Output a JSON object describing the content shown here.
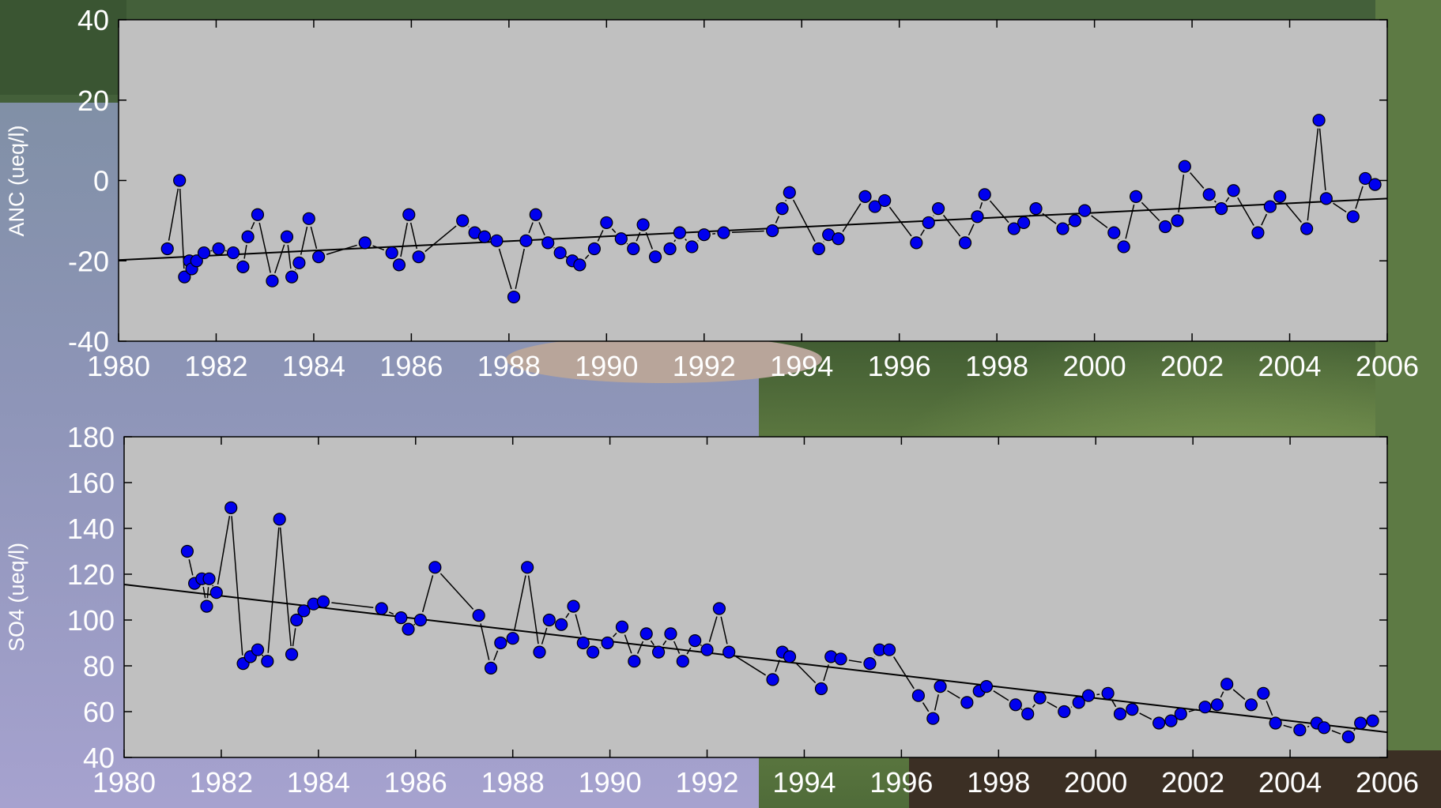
{
  "colors": {
    "plot_bg": "#c0c0c0",
    "marker": "#0000ee",
    "line": "#000000",
    "text": "#ffffff"
  },
  "chart_data": [
    {
      "type": "scatter",
      "ylabel": "ANC (ueq/l)",
      "xlim": [
        1980,
        2006
      ],
      "ylim": [
        -40,
        40
      ],
      "xticks": [
        "1980",
        "1982",
        "1984",
        "1986",
        "1988",
        "1990",
        "1992",
        "1994",
        "1996",
        "1998",
        "2000",
        "2002",
        "2004",
        "2006"
      ],
      "yticks": [
        "-40",
        "-20",
        "0",
        "20",
        "40"
      ],
      "grid": false,
      "series": [
        {
          "x": [
            1981.0,
            1981.25,
            1981.35,
            1981.45,
            1981.5,
            1981.6,
            1981.75,
            1982.05,
            1982.35,
            1982.55,
            1982.65,
            1982.85,
            1983.15,
            1983.45,
            1983.55,
            1983.7,
            1983.9,
            1984.1,
            1985.05,
            1985.6,
            1985.75,
            1985.95,
            1986.15,
            1987.05,
            1987.3,
            1987.5,
            1987.75,
            1988.1,
            1988.35,
            1988.55,
            1988.8,
            1989.05,
            1989.3,
            1989.45,
            1989.75,
            1990.0,
            1990.3,
            1990.55,
            1990.75,
            1991.0,
            1991.3,
            1991.5,
            1991.75,
            1992.0,
            1992.4,
            1993.4,
            1993.6,
            1993.75,
            1994.35,
            1994.55,
            1994.75,
            1995.3,
            1995.5,
            1995.7,
            1996.35,
            1996.6,
            1996.8,
            1997.35,
            1997.6,
            1997.75,
            1998.35,
            1998.55,
            1998.8,
            1999.35,
            1999.6,
            1999.8,
            2000.4,
            2000.6,
            2000.85,
            2001.45,
            2001.7,
            2001.85,
            2002.35,
            2002.6,
            2002.85,
            2003.35,
            2003.6,
            2003.8,
            2004.35,
            2004.6,
            2004.75,
            2005.3,
            2005.55,
            2005.75
          ],
          "y": [
            -17,
            0,
            -24,
            -20,
            -22,
            -20,
            -18,
            -17,
            -18,
            -21.5,
            -14,
            -8.5,
            -25,
            -14,
            -24,
            -20.5,
            -9.5,
            -19,
            -15.5,
            -18,
            -21,
            -8.5,
            -19,
            -10,
            -13,
            -14,
            -15,
            -29,
            -15,
            -8.5,
            -15.5,
            -18,
            -20,
            -21,
            -17,
            -10.5,
            -14.5,
            -17,
            -11,
            -19,
            -17,
            -13,
            -16.5,
            -13.5,
            -13,
            -12.5,
            -7,
            -3,
            -17,
            -13.5,
            -14.5,
            -4,
            -6.5,
            -5,
            -15.5,
            -10.5,
            -7,
            -15.5,
            -9,
            -3.5,
            -12,
            -10.5,
            -7,
            -12,
            -10,
            -7.5,
            -13,
            -16.5,
            -4,
            -11.5,
            -10,
            3.5,
            -3.5,
            -7,
            -2.5,
            -13,
            -6.5,
            -4,
            -12,
            15,
            -4.5,
            -9,
            0.5,
            -1
          ],
          "trend": {
            "x": [
              1980,
              2006
            ],
            "y": [
              -19.8,
              -4.5
            ]
          }
        }
      ]
    },
    {
      "type": "scatter",
      "ylabel": "SO4 (ueq/l)",
      "xlim": [
        1980,
        2006
      ],
      "ylim": [
        40,
        180
      ],
      "xticks": [
        "1980",
        "1982",
        "1984",
        "1986",
        "1988",
        "1990",
        "1992",
        "1994",
        "1996",
        "1998",
        "2000",
        "2002",
        "2004",
        "2006"
      ],
      "yticks": [
        "40",
        "60",
        "80",
        "100",
        "120",
        "140",
        "160",
        "180"
      ],
      "grid": false,
      "series": [
        {
          "x": [
            1981.3,
            1981.45,
            1981.6,
            1981.7,
            1981.75,
            1981.9,
            1982.2,
            1982.45,
            1982.6,
            1982.75,
            1982.95,
            1983.2,
            1983.45,
            1983.55,
            1983.7,
            1983.9,
            1984.1,
            1985.3,
            1985.7,
            1985.85,
            1986.1,
            1986.4,
            1987.3,
            1987.55,
            1987.75,
            1988.0,
            1988.3,
            1988.55,
            1988.75,
            1989.0,
            1989.25,
            1989.45,
            1989.65,
            1989.95,
            1990.25,
            1990.5,
            1990.75,
            1991.0,
            1991.25,
            1991.5,
            1991.75,
            1992.0,
            1992.25,
            1992.45,
            1993.35,
            1993.55,
            1993.7,
            1994.35,
            1994.55,
            1994.75,
            1995.35,
            1995.55,
            1995.75,
            1996.35,
            1996.65,
            1996.8,
            1997.35,
            1997.6,
            1997.75,
            1998.35,
            1998.6,
            1998.85,
            1999.35,
            1999.65,
            1999.85,
            2000.25,
            2000.5,
            2000.75,
            2001.3,
            2001.55,
            2001.75,
            2002.25,
            2002.5,
            2002.7,
            2003.2,
            2003.45,
            2003.7,
            2004.2,
            2004.55,
            2004.7,
            2005.2,
            2005.45,
            2005.7
          ],
          "y": [
            130,
            116,
            118,
            106,
            118,
            112,
            149,
            81,
            84,
            87,
            82,
            144,
            85,
            100,
            104,
            107,
            108,
            105,
            101,
            96,
            100,
            123,
            102,
            79,
            90,
            92,
            123,
            86,
            100,
            98,
            106,
            90,
            86,
            90,
            97,
            82,
            94,
            86,
            94,
            82,
            91,
            87,
            105,
            86,
            74,
            86,
            84,
            70,
            84,
            83,
            81,
            87,
            87,
            67,
            57,
            71,
            64,
            69,
            71,
            63,
            59,
            66,
            60,
            64,
            67,
            68,
            59,
            61,
            55,
            56,
            59,
            62,
            63,
            72,
            63,
            68,
            55,
            52,
            55,
            53,
            49,
            55,
            56
          ],
          "trend": {
            "x": [
              1980,
              2006
            ],
            "y": [
              115.5,
              51
            ]
          }
        }
      ]
    }
  ]
}
